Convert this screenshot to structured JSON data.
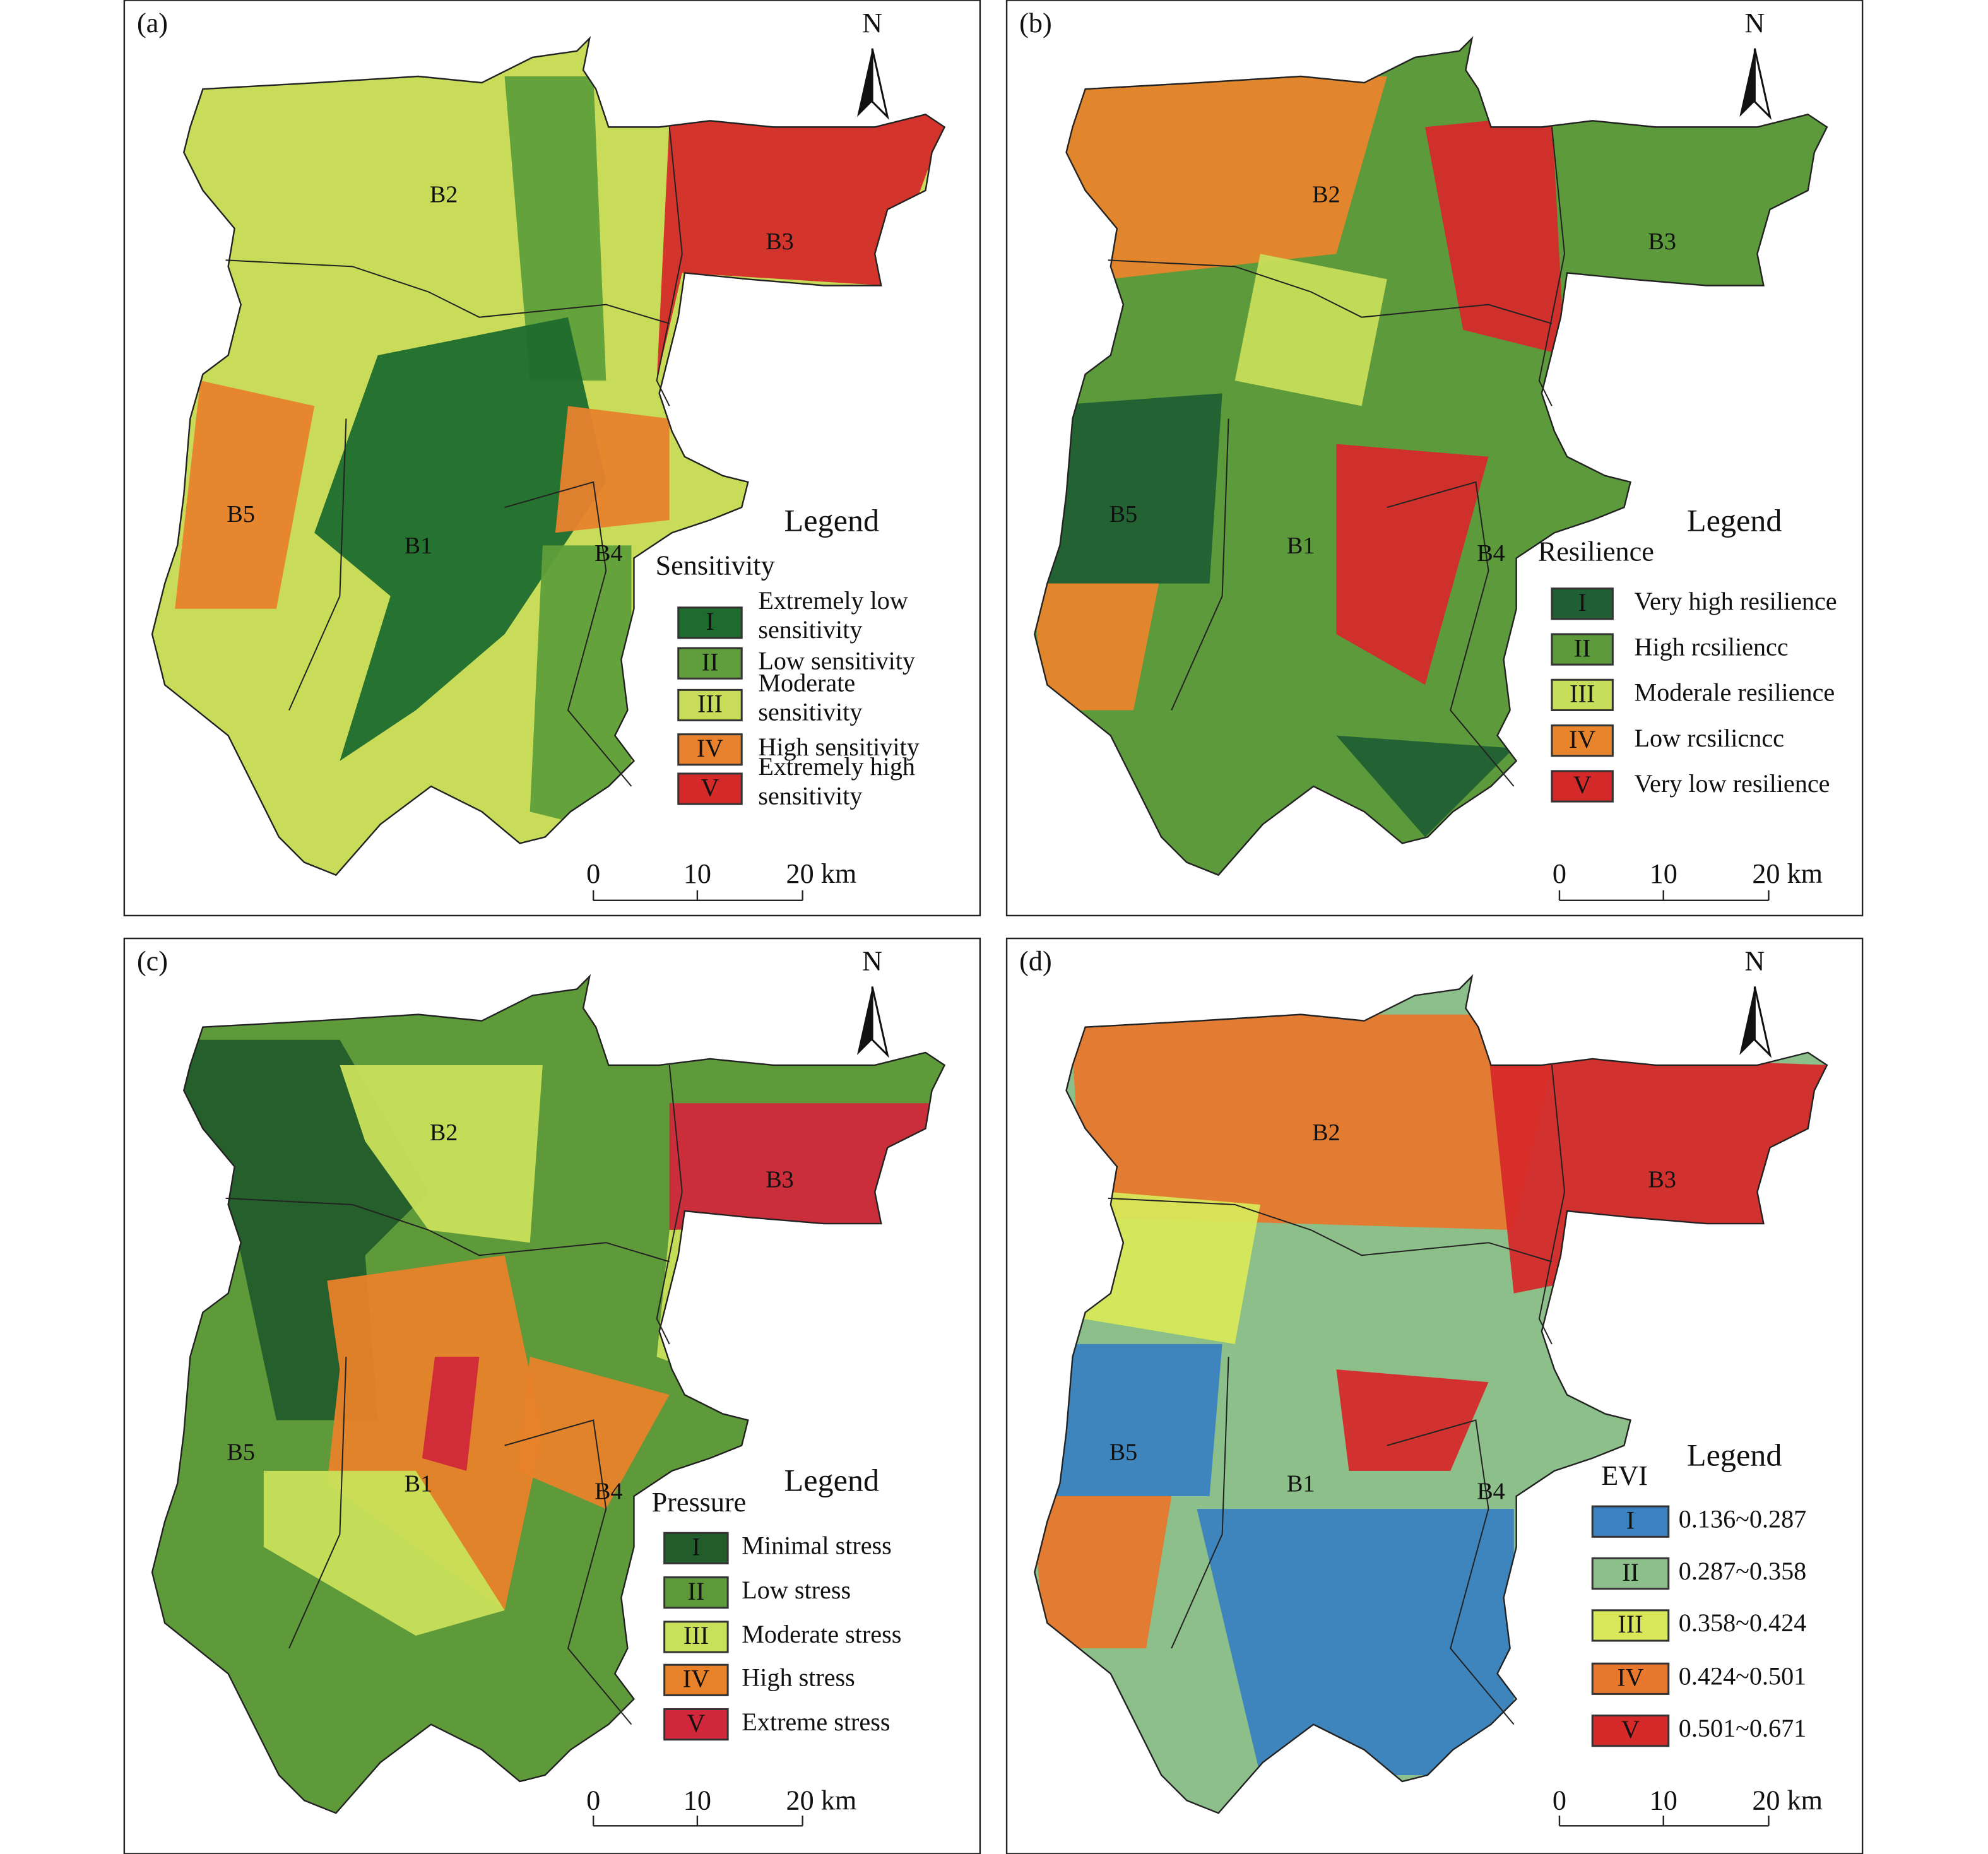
{
  "panels": [
    {
      "label": "(a)",
      "north": "N",
      "regions": [
        "B1",
        "B2",
        "B3",
        "B4",
        "B5"
      ],
      "legend_title": "Legend",
      "legend_subtitle": "Sensitivity",
      "items": [
        {
          "class": "I",
          "label": [
            "Extremely low",
            "sensitivity"
          ],
          "color": "#1e6b2e"
        },
        {
          "class": "II",
          "label": [
            "Low sensitivity"
          ],
          "color": "#5f9e3a"
        },
        {
          "class": "III",
          "label": [
            "Moderate",
            "sensitivity"
          ],
          "color": "#c8dc5a"
        },
        {
          "class": "IV",
          "label": [
            "High sensitivity"
          ],
          "color": "#e8822e"
        },
        {
          "class": "V",
          "label": [
            "Extremely high",
            "sensitivity"
          ],
          "color": "#d42a2a"
        }
      ],
      "scale_bar": [
        "0",
        "10",
        "20 km"
      ]
    },
    {
      "label": "(b)",
      "north": "N",
      "regions": [
        "B1",
        "B2",
        "B3",
        "B4",
        "B5"
      ],
      "legend_title": "Legend",
      "legend_subtitle": "Resilience",
      "items": [
        {
          "class": "I",
          "label": [
            "Very high resilience"
          ],
          "color": "#1f5f33"
        },
        {
          "class": "II",
          "label": [
            "High rcsiliencc"
          ],
          "color": "#5c9a3c"
        },
        {
          "class": "III",
          "label": [
            "Moderale resilience"
          ],
          "color": "#c6de5a"
        },
        {
          "class": "IV",
          "label": [
            "Low rcsilicncc"
          ],
          "color": "#e8852c"
        },
        {
          "class": "V",
          "label": [
            "Very low resilience"
          ],
          "color": "#d62a2a"
        }
      ],
      "scale_bar": [
        "0",
        "10",
        "20 km"
      ]
    },
    {
      "label": "(c)",
      "north": "N",
      "regions": [
        "B1",
        "B2",
        "B3",
        "B4",
        "B5"
      ],
      "legend_title": "Legend",
      "legend_subtitle": "Pressure",
      "items": [
        {
          "class": "I",
          "label": [
            "Minimal stress"
          ],
          "color": "#225c2a"
        },
        {
          "class": "II",
          "label": [
            "Low stress"
          ],
          "color": "#5f9a3a"
        },
        {
          "class": "III",
          "label": [
            "Moderate stress"
          ],
          "color": "#c9e05a"
        },
        {
          "class": "IV",
          "label": [
            "High stress"
          ],
          "color": "#e8822a"
        },
        {
          "class": "V",
          "label": [
            "Extreme stress"
          ],
          "color": "#d0283a"
        }
      ],
      "scale_bar": [
        "0",
        "10",
        "20 km"
      ]
    },
    {
      "label": "(d)",
      "north": "N",
      "regions": [
        "B1",
        "B2",
        "B3",
        "B4",
        "B5"
      ],
      "legend_title": "Legend",
      "legend_subtitle": "EVI",
      "items": [
        {
          "class": "I",
          "label": [
            "0.136~0.287"
          ],
          "color": "#3a82c0"
        },
        {
          "class": "II",
          "label": [
            "0.287~0.358"
          ],
          "color": "#8cbf8a"
        },
        {
          "class": "III",
          "label": [
            "0.358~0.424"
          ],
          "color": "#d8e85a"
        },
        {
          "class": "IV",
          "label": [
            "0.424~0.501"
          ],
          "color": "#e8782e"
        },
        {
          "class": "V",
          "label": [
            "0.501~0.671"
          ],
          "color": "#d62a2a"
        }
      ],
      "scale_bar": [
        "0",
        "10",
        "20 km"
      ]
    }
  ]
}
